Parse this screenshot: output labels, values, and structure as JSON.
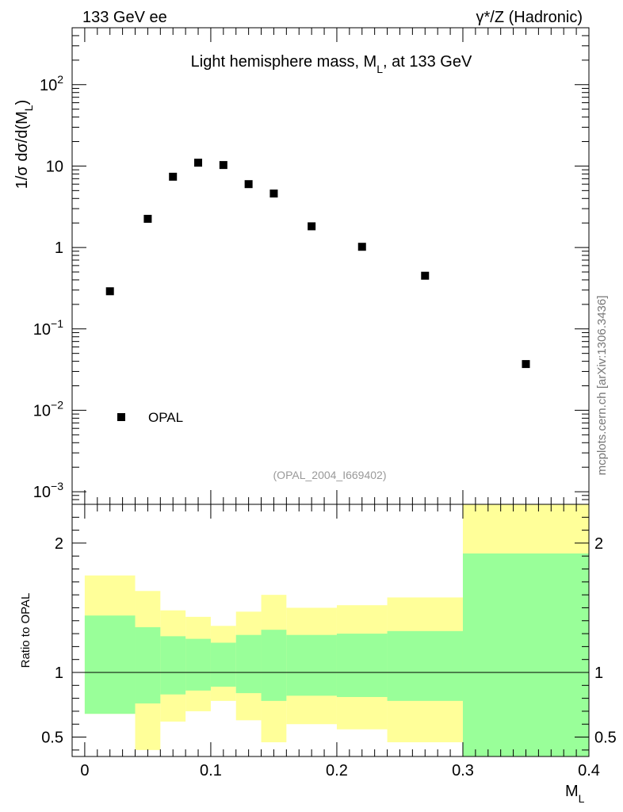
{
  "header": {
    "left_label": "133 GeV ee",
    "right_label": "γ*/Z (Hadronic)"
  },
  "side_label": "mcplots.cern.ch [arXiv:1306.3436]",
  "chart_data": [
    {
      "type": "scatter",
      "title": "Light hemisphere mass, M_L, at 133 GeV",
      "title_parts": {
        "main": "Light hemisphere mass, M",
        "sub": "L",
        "tail": ", at 133 GeV"
      },
      "ylabel_parts": {
        "prefix": "1/σ  dσ/d(M",
        "sub": "L",
        "suffix": ")"
      },
      "yscale": "log",
      "ylim": [
        0.0007,
        500
      ],
      "xlim": [
        -0.01,
        0.4
      ],
      "ytick_labels": [
        {
          "base": "10",
          "exp": "−3"
        },
        {
          "base": "10",
          "exp": "−2"
        },
        {
          "base": "10",
          "exp": "−1"
        },
        {
          "base": "1",
          "exp": ""
        },
        {
          "base": "10",
          "exp": ""
        },
        {
          "base": "10",
          "exp": "2"
        }
      ],
      "ytick_values": [
        0.001,
        0.01,
        0.1,
        1,
        10,
        100
      ],
      "series": [
        {
          "name": "OPAL",
          "marker": "square",
          "color": "#000000",
          "x": [
            0.02,
            0.05,
            0.07,
            0.09,
            0.11,
            0.13,
            0.15,
            0.18,
            0.22,
            0.27,
            0.35
          ],
          "y": [
            0.29,
            2.25,
            7.4,
            11.0,
            10.3,
            6.0,
            4.6,
            1.82,
            1.02,
            0.45,
            0.037
          ]
        }
      ],
      "legend": {
        "position": "bottom-left",
        "entries": [
          "OPAL"
        ]
      },
      "annotation": "(OPAL_2004_I669402)"
    },
    {
      "type": "area",
      "ylabel": "Ratio to OPAL",
      "xlabel_parts": {
        "main": "M",
        "sub": "L"
      },
      "xlim": [
        -0.01,
        0.4
      ],
      "ylim": [
        0.35,
        2.3
      ],
      "xtick_labels": [
        "0",
        "0.1",
        "0.2",
        "0.3",
        "0.4"
      ],
      "xtick_values": [
        0,
        0.1,
        0.2,
        0.3,
        0.4
      ],
      "ytick_labels": [
        "0.5",
        "1",
        "2"
      ],
      "ytick_values": [
        0.5,
        1,
        2
      ],
      "reference_line": 1,
      "bin_edges": [
        0,
        0.04,
        0.06,
        0.08,
        0.1,
        0.12,
        0.14,
        0.16,
        0.2,
        0.24,
        0.3,
        0.4
      ],
      "bands": [
        {
          "name": "total uncertainty",
          "color": "#ffff99",
          "low": [
            0.68,
            0.4,
            0.62,
            0.7,
            0.78,
            0.63,
            0.46,
            0.6,
            0.56,
            0.46,
            0.35
          ],
          "high": [
            1.75,
            1.63,
            1.48,
            1.43,
            1.36,
            1.47,
            1.6,
            1.5,
            1.52,
            1.58,
            2.3
          ]
        },
        {
          "name": "statistical uncertainty",
          "color": "#99ff99",
          "low": [
            0.68,
            0.76,
            0.83,
            0.86,
            0.89,
            0.84,
            0.78,
            0.82,
            0.81,
            0.78,
            0.35
          ],
          "high": [
            1.44,
            1.35,
            1.28,
            1.26,
            1.23,
            1.29,
            1.33,
            1.29,
            1.3,
            1.32,
            1.92
          ]
        }
      ]
    }
  ]
}
